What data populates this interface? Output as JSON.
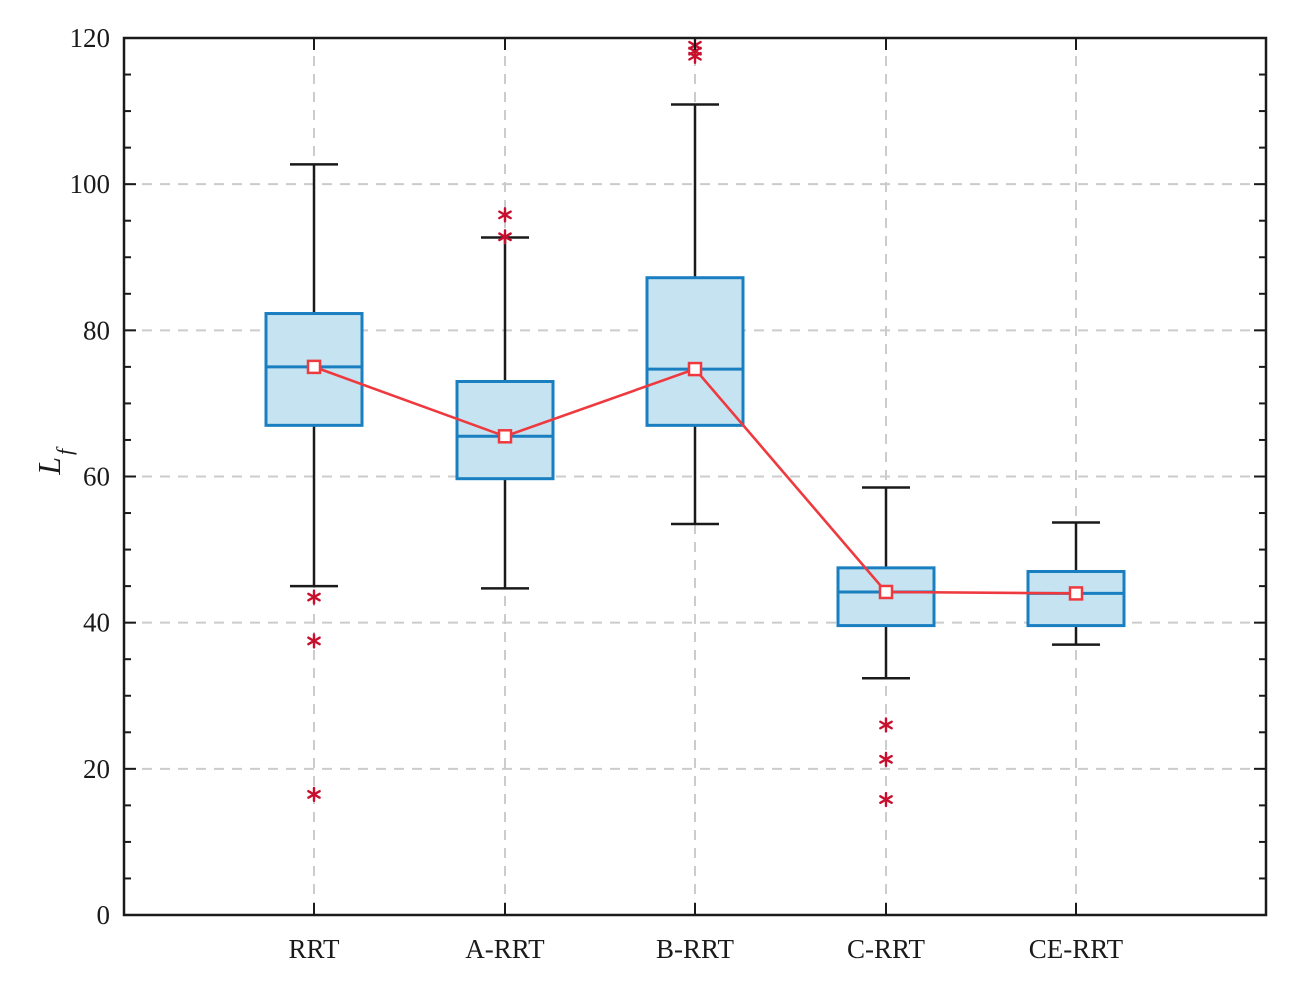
{
  "chart_data": {
    "type": "box",
    "title": "",
    "xlabel": "",
    "ylabel": "L",
    "ylabel_subscript": "f",
    "ylim": [
      0,
      120
    ],
    "yticks": [
      "0",
      "20",
      "40",
      "60",
      "80",
      "100",
      "120"
    ],
    "grid": true,
    "categories": [
      "RRT",
      "A-RRT",
      "B-RRT",
      "C-RRT",
      "CE-RRT"
    ],
    "boxes": [
      {
        "name": "RRT",
        "whisker_low": 45.0,
        "q1": 67.0,
        "median": 75.0,
        "q3": 82.3,
        "whisker_high": 102.7,
        "outliers": [
          43.5,
          37.5,
          16.5
        ]
      },
      {
        "name": "A-RRT",
        "whisker_low": 44.7,
        "q1": 59.7,
        "median": 65.5,
        "q3": 73.0,
        "whisker_high": 92.7,
        "outliers": [
          95.8,
          92.8
        ]
      },
      {
        "name": "B-RRT",
        "whisker_low": 53.5,
        "q1": 67.0,
        "median": 74.7,
        "q3": 87.2,
        "whisker_high": 110.9,
        "outliers": [
          119.0,
          118.2,
          117.5
        ]
      },
      {
        "name": "C-RRT",
        "whisker_low": 32.4,
        "q1": 39.6,
        "median": 44.2,
        "q3": 47.5,
        "whisker_high": 58.5,
        "outliers": [
          26.0,
          21.3,
          15.8
        ]
      },
      {
        "name": "CE-RRT",
        "whisker_low": 37.0,
        "q1": 39.6,
        "median": 44.0,
        "q3": 47.0,
        "whisker_high": 53.7,
        "outliers": []
      }
    ],
    "mean_line": {
      "name": "mean",
      "values": [
        75.0,
        65.5,
        74.7,
        44.2,
        44.0
      ]
    },
    "colors": {
      "box_fill": "#c5e3f0",
      "box_edge": "#1a7fc1",
      "whisker": "#1a1a1a",
      "outlier": "#c8102e",
      "mean_line": "#ee3a3f",
      "grid": "#cccccc",
      "axis": "#1a1a1a"
    }
  }
}
